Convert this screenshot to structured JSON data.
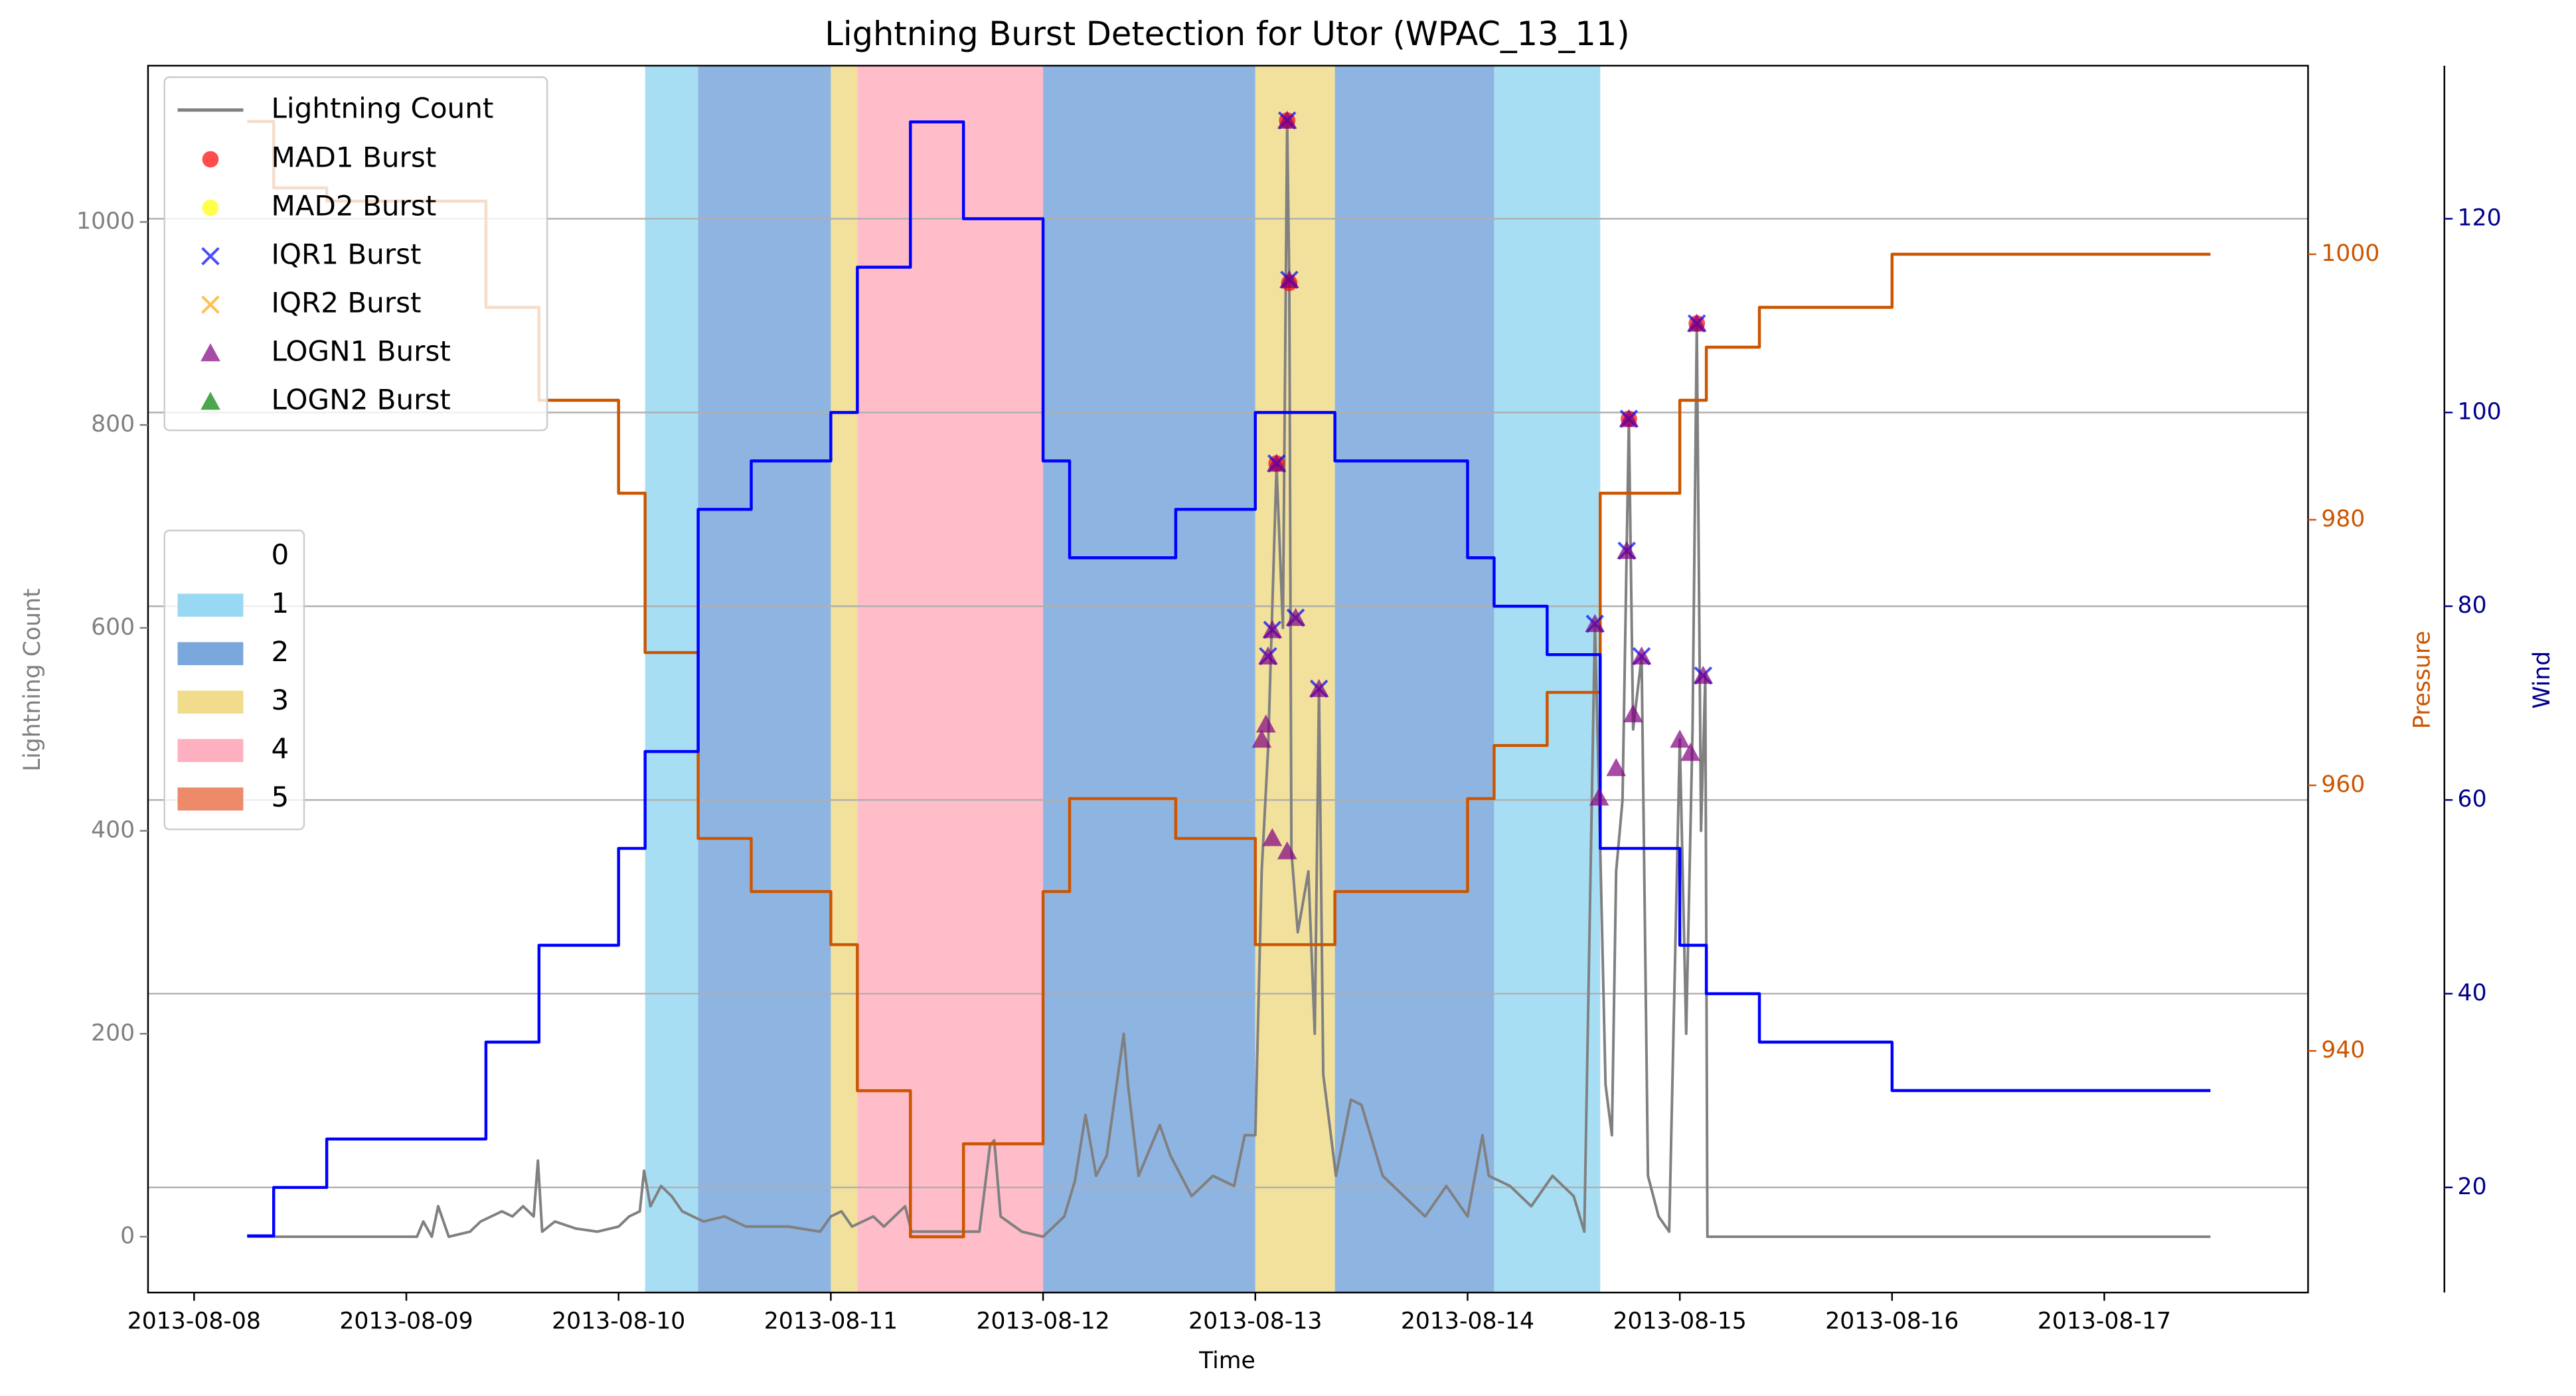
{
  "chart_data": {
    "type": "line",
    "title": "Lightning Burst Detection for Utor (WPAC_13_11)",
    "xlabel": "Time",
    "ylabel": "Lightning Count",
    "y2label": "Pressure",
    "y3label": "Wind",
    "xlim": [
      -0.217,
      9.96
    ],
    "xticks": [
      {
        "value": 0,
        "label": "2013-08-08"
      },
      {
        "value": 1,
        "label": "2013-08-09"
      },
      {
        "value": 2,
        "label": "2013-08-10"
      },
      {
        "value": 3,
        "label": "2013-08-11"
      },
      {
        "value": 4,
        "label": "2013-08-12"
      },
      {
        "value": 5,
        "label": "2013-08-13"
      },
      {
        "value": 6,
        "label": "2013-08-14"
      },
      {
        "value": 7,
        "label": "2013-08-15"
      },
      {
        "value": 8,
        "label": "2013-08-16"
      },
      {
        "value": 9,
        "label": "2013-08-17"
      }
    ],
    "ylim": [
      -55,
      1154
    ],
    "yticks": [
      0,
      200,
      400,
      600,
      800,
      1000
    ],
    "ycolor": "#808080",
    "y2lim": [
      921.8,
      1014.2
    ],
    "y2ticks": [
      940,
      960,
      980,
      1000
    ],
    "y2color": "#cc5500",
    "y3lim": [
      9.15,
      135.8
    ],
    "y3ticks": [
      20,
      40,
      60,
      80,
      100,
      120
    ],
    "y3color": "#00008b",
    "grid_axis": "y3",
    "series": [
      {
        "name": "Lightning Count",
        "color": "#808080",
        "axis": "y",
        "x": [
          0.25,
          1.05,
          1.08,
          1.12,
          1.15,
          1.2,
          1.3,
          1.35,
          1.4,
          1.45,
          1.5,
          1.55,
          1.6,
          1.62,
          1.64,
          1.7,
          1.8,
          1.9,
          2.0,
          2.05,
          2.1,
          2.12,
          2.15,
          2.2,
          2.25,
          2.3,
          2.4,
          2.5,
          2.6,
          2.8,
          2.95,
          3.0,
          3.05,
          3.1,
          3.2,
          3.25,
          3.35,
          3.38,
          3.5,
          3.7,
          3.75,
          3.77,
          3.8,
          3.9,
          4.0,
          4.1,
          4.15,
          4.2,
          4.25,
          4.3,
          4.38,
          4.4,
          4.45,
          4.55,
          4.6,
          4.7,
          4.8,
          4.9,
          4.95,
          5.0,
          5.03,
          5.06,
          5.1,
          5.13,
          5.15,
          5.16,
          5.17,
          5.2,
          5.25,
          5.28,
          5.3,
          5.32,
          5.38,
          5.45,
          5.5,
          5.6,
          5.7,
          5.8,
          5.9,
          6.0,
          6.07,
          6.1,
          6.2,
          6.3,
          6.4,
          6.5,
          6.55,
          6.6,
          6.62,
          6.65,
          6.68,
          6.7,
          6.73,
          6.76,
          6.78,
          6.82,
          6.85,
          6.9,
          6.95,
          7.0,
          7.03,
          7.06,
          7.08,
          7.1,
          7.12,
          7.13,
          9.5
        ],
        "values": [
          0,
          0,
          15,
          0,
          30,
          0,
          5,
          15,
          20,
          25,
          20,
          30,
          20,
          75,
          5,
          15,
          8,
          5,
          10,
          20,
          25,
          65,
          30,
          50,
          40,
          25,
          15,
          20,
          10,
          10,
          5,
          20,
          25,
          10,
          20,
          10,
          30,
          5,
          5,
          5,
          90,
          95,
          20,
          5,
          0,
          20,
          55,
          120,
          60,
          80,
          200,
          150,
          60,
          110,
          80,
          40,
          60,
          50,
          100,
          100,
          360,
          480,
          760,
          600,
          1100,
          940,
          380,
          300,
          360,
          200,
          540,
          160,
          60,
          135,
          130,
          60,
          40,
          20,
          50,
          20,
          100,
          60,
          50,
          30,
          60,
          40,
          5,
          604,
          430,
          150,
          100,
          360,
          430,
          806,
          500,
          572,
          60,
          20,
          5,
          490,
          200,
          500,
          900,
          400,
          553,
          0,
          0
        ]
      },
      {
        "name": "Pressure",
        "color": "#cc5500",
        "axis": "y2",
        "step": "post",
        "x": [
          0.25,
          0.375,
          0.625,
          1.375,
          1.625,
          2.0,
          2.125,
          2.375,
          2.625,
          3.0,
          3.125,
          3.375,
          3.625,
          4.0,
          4.125,
          4.625,
          5.0,
          5.375,
          6.0,
          6.125,
          6.375,
          6.625,
          7.0,
          7.125,
          7.375,
          8.0,
          9.5
        ],
        "values": [
          1010,
          1005,
          1004,
          996,
          989,
          982,
          970,
          956,
          952,
          948,
          937,
          926,
          933,
          952,
          959,
          956,
          948,
          952,
          959,
          963,
          967,
          982,
          989,
          993,
          996,
          1000,
          1000
        ]
      },
      {
        "name": "Wind",
        "color": "#0000ff",
        "axis": "y3",
        "step": "post",
        "x": [
          0.25,
          0.375,
          0.625,
          1.375,
          1.625,
          2.0,
          2.125,
          2.375,
          2.625,
          3.0,
          3.125,
          3.375,
          3.625,
          4.0,
          4.125,
          4.625,
          5.0,
          5.375,
          6.0,
          6.125,
          6.375,
          6.625,
          7.0,
          7.125,
          7.375,
          8.0,
          9.5
        ],
        "values": [
          15,
          20,
          25,
          35,
          45,
          55,
          65,
          90,
          95,
          100,
          115,
          130,
          120,
          95,
          85,
          90,
          100,
          95,
          85,
          80,
          75,
          55,
          45,
          40,
          35,
          30,
          30
        ]
      }
    ],
    "bursts": [
      {
        "name": "MAD1 Burst",
        "color": "#ff0000",
        "marker": "circle",
        "x": [
          5.15,
          5.16,
          5.1,
          6.76,
          7.08
        ],
        "values": [
          1100,
          940,
          762,
          806,
          900
        ]
      },
      {
        "name": "MAD2 Burst",
        "color": "#ffff00",
        "marker": "circle",
        "x": [],
        "values": []
      },
      {
        "name": "IQR1 Burst",
        "color": "#0000ff",
        "marker": "x",
        "x": [
          5.15,
          5.16,
          5.1,
          5.08,
          5.06,
          5.19,
          5.3,
          6.6,
          6.76,
          6.75,
          6.82,
          7.08,
          7.11
        ],
        "values": [
          1100,
          943,
          762,
          598,
          572,
          610,
          540,
          604,
          806,
          676,
          572,
          900,
          553
        ]
      },
      {
        "name": "IQR2 Burst",
        "color": "#ffa500",
        "marker": "x",
        "x": [],
        "values": []
      },
      {
        "name": "LOGN1 Burst",
        "color": "#800080",
        "marker": "triangle",
        "x": [
          5.15,
          5.16,
          5.1,
          5.08,
          5.06,
          5.19,
          5.3,
          6.6,
          6.76,
          6.75,
          6.82,
          7.08,
          7.11,
          5.05,
          5.03,
          6.62,
          6.7,
          6.78,
          7.0,
          7.05,
          5.08,
          5.15
        ],
        "values": [
          1100,
          943,
          762,
          598,
          572,
          610,
          540,
          604,
          806,
          676,
          572,
          900,
          553,
          505,
          490,
          433,
          462,
          515,
          490,
          477,
          393,
          380
        ]
      },
      {
        "name": "LOGN2 Burst",
        "color": "#008000",
        "marker": "triangle",
        "x": [],
        "values": []
      }
    ],
    "bands": [
      {
        "start": 2.125,
        "end": 2.375,
        "level": 1
      },
      {
        "start": 2.375,
        "end": 3.0,
        "level": 2
      },
      {
        "start": 3.0,
        "end": 3.125,
        "level": 3
      },
      {
        "start": 3.125,
        "end": 4.0,
        "level": 4
      },
      {
        "start": 4.0,
        "end": 5.0,
        "level": 2
      },
      {
        "start": 5.0,
        "end": 5.375,
        "level": 3
      },
      {
        "start": 5.375,
        "end": 6.125,
        "level": 2
      },
      {
        "start": 6.125,
        "end": 6.625,
        "level": 1
      }
    ],
    "band_legend": {
      "labels": [
        "0",
        "1",
        "2",
        "3",
        "4",
        "5"
      ],
      "colors": [
        "#ffffff",
        "#99d8f2",
        "#7aa7dc",
        "#f0dc8c",
        "#ffb0c0",
        "#ec8a6a"
      ]
    }
  }
}
